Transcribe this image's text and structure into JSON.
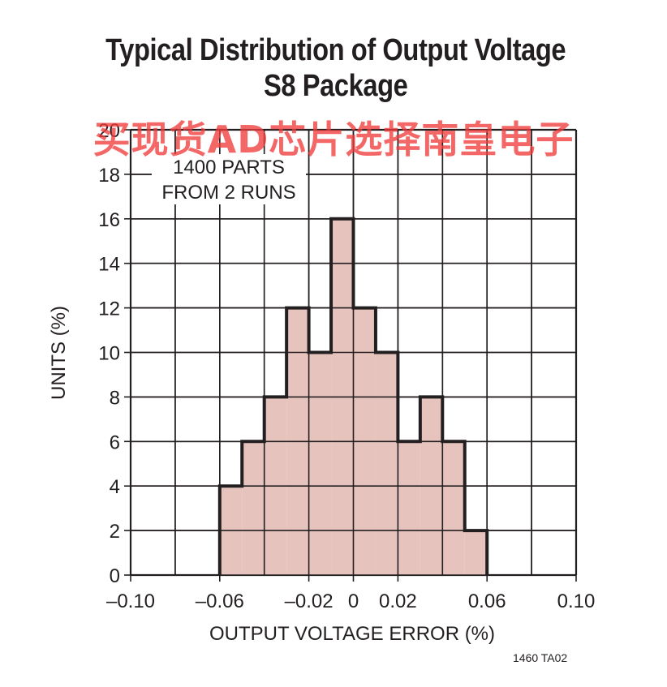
{
  "title_line1": "Typical Distribution of Output Voltage",
  "title_line2": "S8 Package",
  "watermark": "买现货AD芯片选择南皇电子",
  "figure_code": "1460 TA02",
  "colors": {
    "bar_fill": "#e6c3bd",
    "bar_outline": "#231f20",
    "grid": "#231f20"
  },
  "chart_data": {
    "type": "bar",
    "title": "Typical Distribution of Output Voltage S8 Package",
    "xlabel": "OUTPUT VOLTAGE ERROR (%)",
    "ylabel": "UNITS (%)",
    "xlim": [
      -0.1,
      0.1
    ],
    "ylim": [
      0,
      20
    ],
    "grid": true,
    "annotation": [
      "1400 PARTS",
      "FROM 2 RUNS"
    ],
    "x_ticks": [
      {
        "value": -0.1,
        "label": "–0.10"
      },
      {
        "value": -0.06,
        "label": "–0.06"
      },
      {
        "value": -0.02,
        "label": "–0.02"
      },
      {
        "value": 0,
        "label": "0"
      },
      {
        "value": 0.02,
        "label": "0.02"
      },
      {
        "value": 0.06,
        "label": "0.06"
      },
      {
        "value": 0.1,
        "label": "0.10"
      }
    ],
    "y_ticks": [
      0,
      2,
      4,
      6,
      8,
      10,
      12,
      14,
      16,
      18,
      20
    ],
    "bins": [
      {
        "start": -0.06,
        "end": -0.05,
        "value": 4
      },
      {
        "start": -0.05,
        "end": -0.04,
        "value": 6
      },
      {
        "start": -0.04,
        "end": -0.03,
        "value": 8
      },
      {
        "start": -0.03,
        "end": -0.02,
        "value": 12
      },
      {
        "start": -0.02,
        "end": -0.01,
        "value": 10
      },
      {
        "start": -0.01,
        "end": 0.0,
        "value": 16
      },
      {
        "start": 0.0,
        "end": 0.01,
        "value": 12
      },
      {
        "start": 0.01,
        "end": 0.02,
        "value": 10
      },
      {
        "start": 0.02,
        "end": 0.03,
        "value": 6
      },
      {
        "start": 0.03,
        "end": 0.04,
        "value": 8
      },
      {
        "start": 0.04,
        "end": 0.05,
        "value": 6
      },
      {
        "start": 0.05,
        "end": 0.06,
        "value": 2
      }
    ]
  }
}
